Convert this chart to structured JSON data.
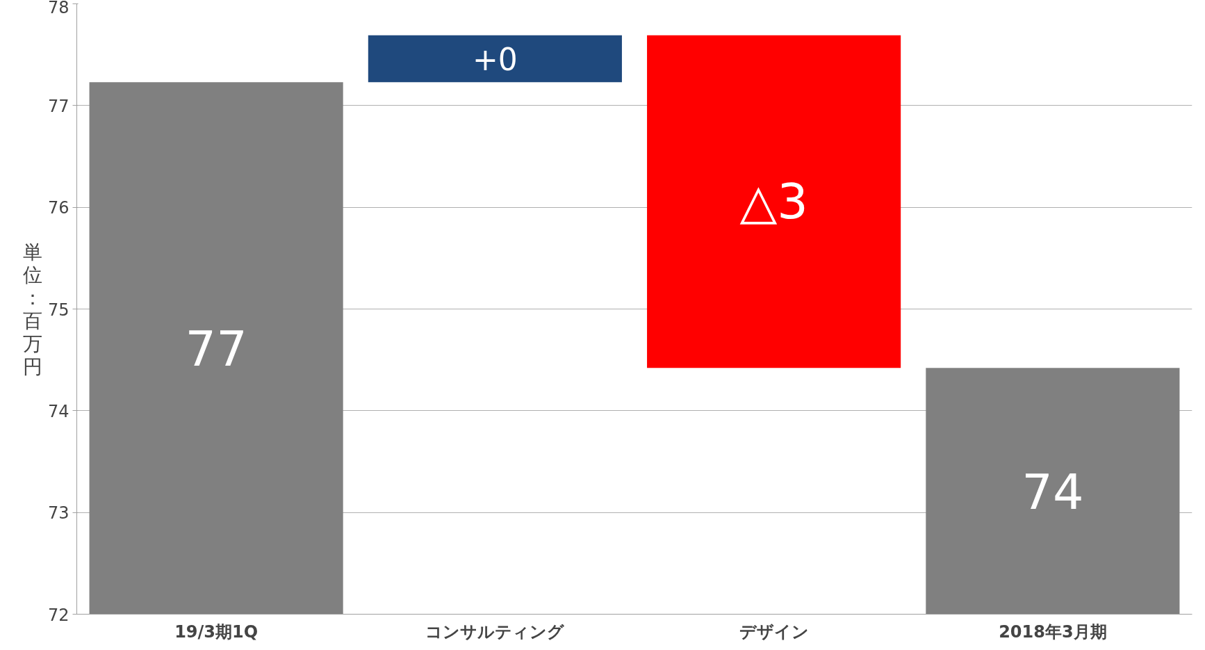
{
  "chart_data": {
    "type": "bar",
    "ylabel": "単位：百万円",
    "categories": [
      "19/3期1Q",
      "コンサルティング",
      "デザイン",
      "2018年3月期"
    ],
    "values": [
      77.23,
      0.46,
      -3.27,
      74.42
    ],
    "base": [
      0,
      77.23,
      77.69,
      0
    ],
    "colors": [
      "#808080",
      "#1f497d",
      "#ff0000",
      "#808080"
    ],
    "value_labels": [
      "77",
      "+0",
      "△3",
      "74"
    ],
    "ylim": [
      72,
      78
    ],
    "yticks": [
      72,
      73,
      74,
      75,
      76,
      77,
      78
    ],
    "grid": "y"
  }
}
